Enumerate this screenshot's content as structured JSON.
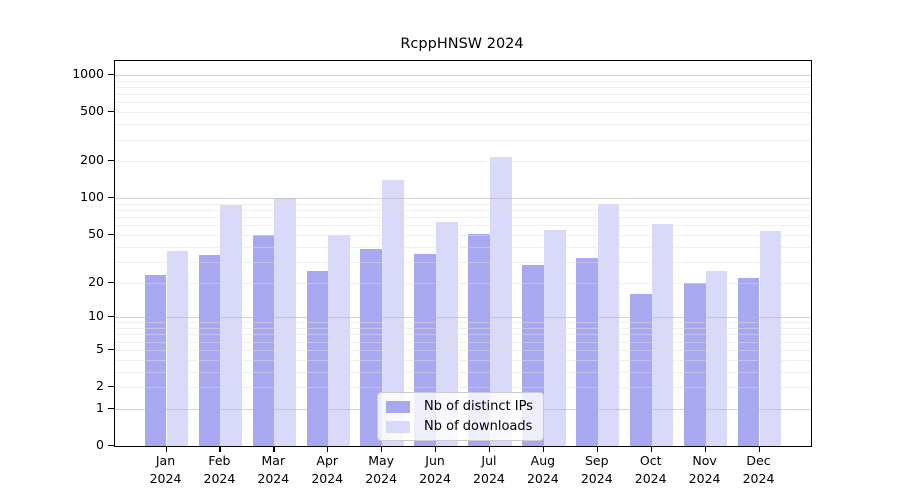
{
  "title": "RcppHNSW 2024",
  "chart_data": {
    "type": "bar",
    "title": "RcppHNSW 2024",
    "scale": "log1p",
    "grid": true,
    "legend_position": "lower center",
    "categories": [
      "Jan",
      "Feb",
      "Mar",
      "Apr",
      "May",
      "Jun",
      "Jul",
      "Aug",
      "Sep",
      "Oct",
      "Nov",
      "Dec"
    ],
    "year_label": "2024",
    "series": [
      {
        "name": "Nb of distinct IPs",
        "color": "#a8a8f0",
        "values": [
          23,
          34,
          50,
          25,
          38,
          35,
          51,
          28,
          32,
          16,
          20,
          22
        ]
      },
      {
        "name": "Nb of downloads",
        "color": "#d9d9f9",
        "values": [
          37,
          88,
          100,
          50,
          140,
          64,
          215,
          55,
          90,
          61,
          25,
          54
        ]
      }
    ],
    "yticks": [
      0,
      1,
      2,
      5,
      10,
      20,
      50,
      100,
      200,
      500,
      1000
    ],
    "major_gridlines": [
      1,
      10,
      100,
      1000
    ],
    "ylim": [
      0,
      1300
    ],
    "xlabel": "",
    "ylabel": ""
  },
  "colors": {
    "background": "#ffffff",
    "axis": "#000000",
    "major_grid": "#c8c8c8",
    "minor_grid": "#ebebeb",
    "series_ips": "#a8a8f0",
    "series_downloads": "#d9d9f9"
  }
}
